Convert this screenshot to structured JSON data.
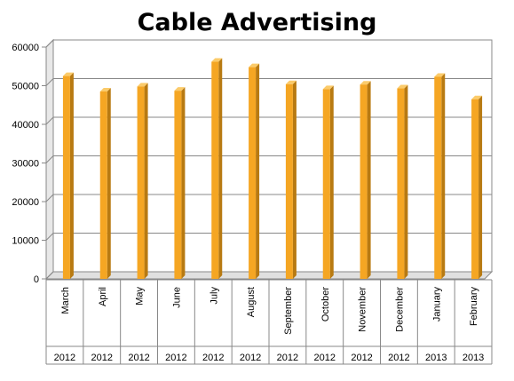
{
  "chart_data": {
    "type": "bar",
    "title": "Cable Advertising",
    "categories": [
      "March",
      "April",
      "May",
      "June",
      "July",
      "August",
      "September",
      "October",
      "November",
      "December",
      "January",
      "February"
    ],
    "years": [
      "2012",
      "2012",
      "2012",
      "2012",
      "2012",
      "2012",
      "2012",
      "2012",
      "2012",
      "2012",
      "2013",
      "2013"
    ],
    "values": [
      52500,
      48500,
      49800,
      48700,
      56200,
      54800,
      50400,
      49100,
      50300,
      49300,
      52300,
      46500
    ],
    "ylim": [
      0,
      60000
    ],
    "yticks": [
      "0",
      "10000",
      "20000",
      "30000",
      "40000",
      "50000",
      "60000"
    ],
    "grid": true,
    "legend": "none",
    "bar_color": "#F5A623",
    "bar_side_color": "#B87A12",
    "bar_top_color": "#FBCB6A",
    "wall_color": "#d9d9d9"
  }
}
